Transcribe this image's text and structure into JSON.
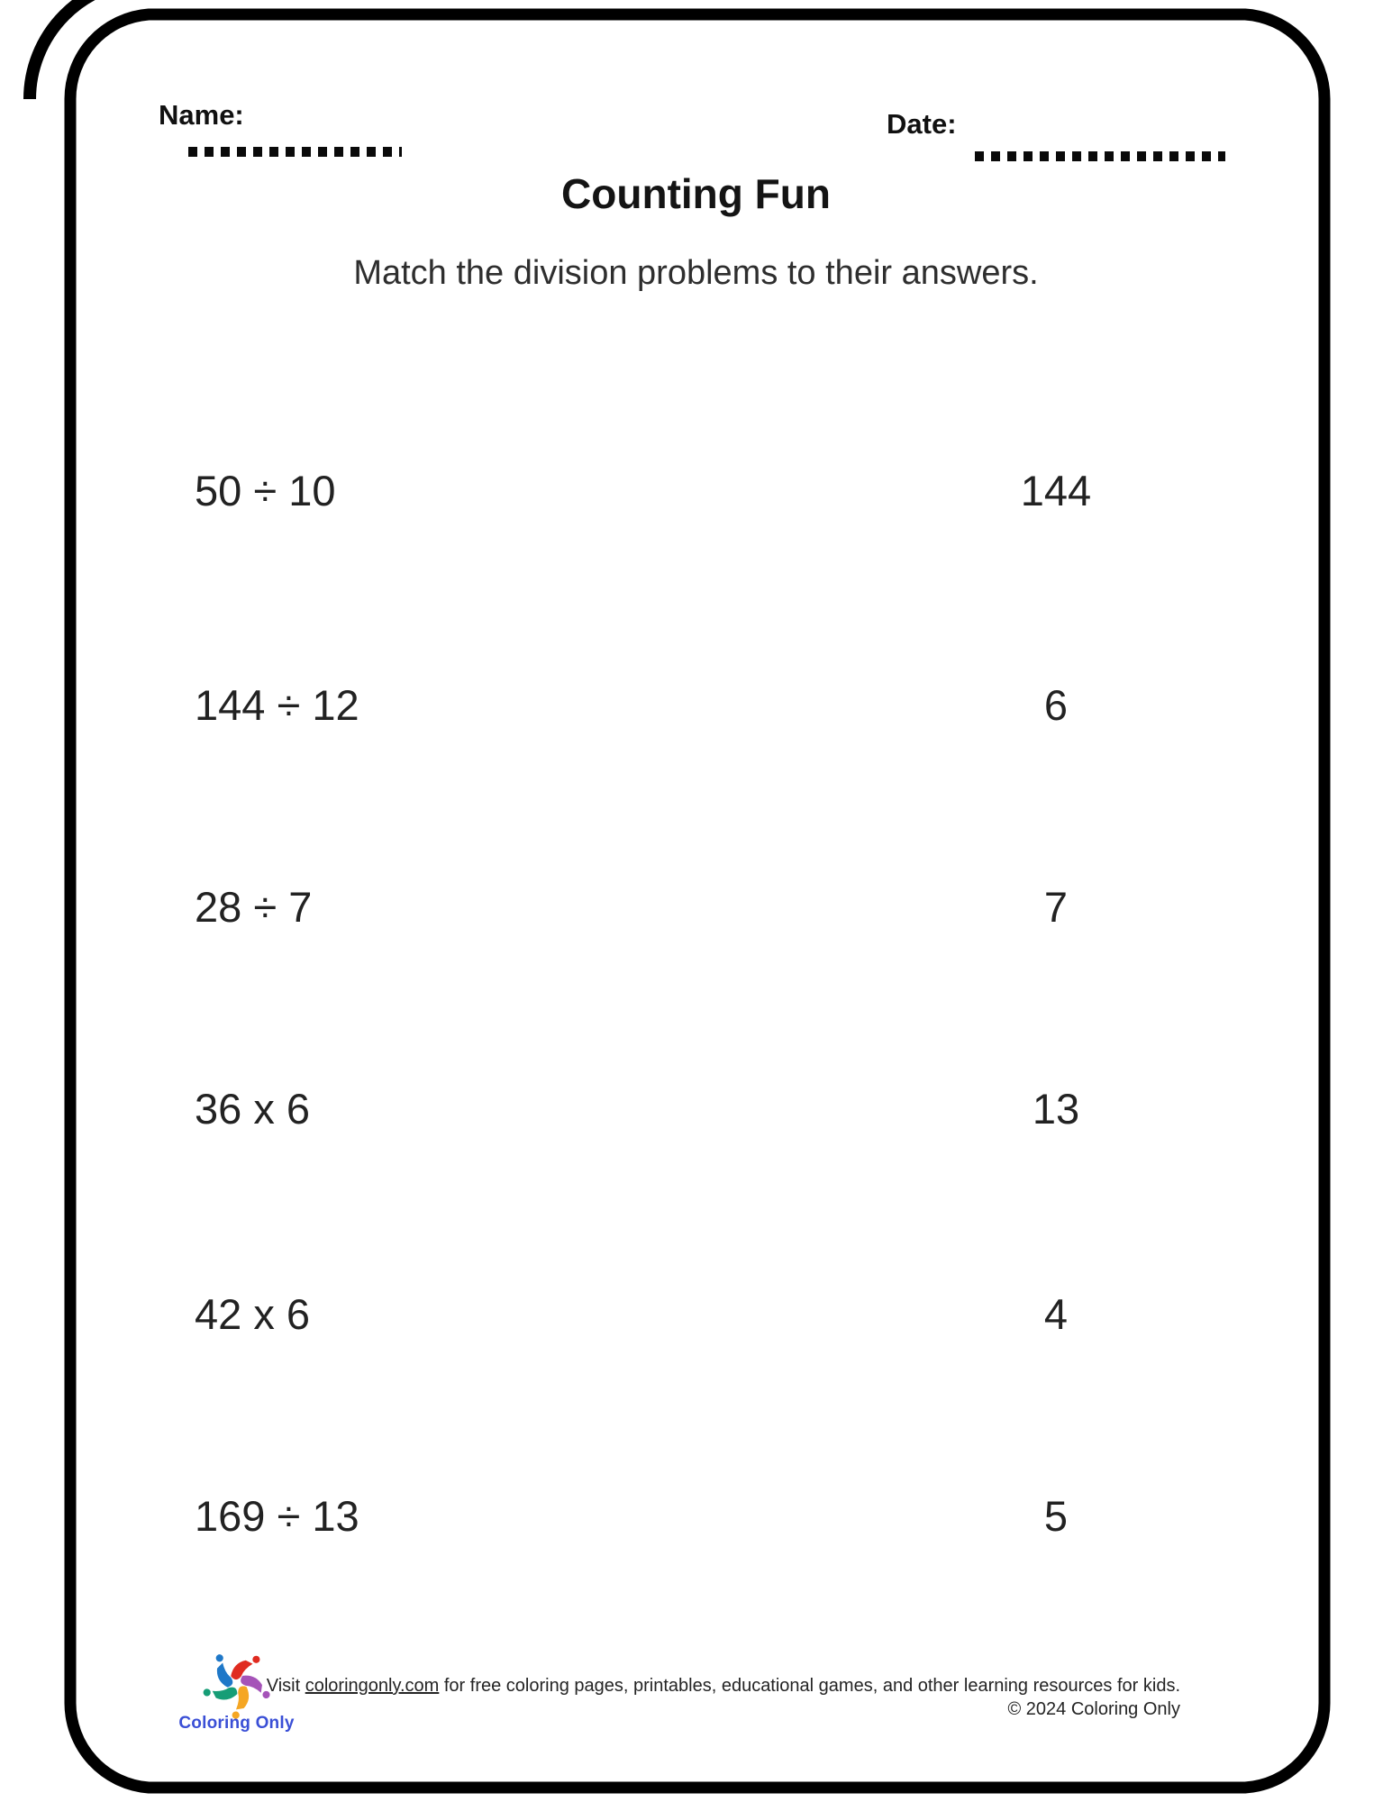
{
  "header": {
    "name_label": "Name:",
    "date_label": "Date:"
  },
  "title": "Counting Fun",
  "subtitle": "Match the division problems to their answers.",
  "problems": [
    {
      "expression": "50 ÷ 10",
      "answer": "144"
    },
    {
      "expression": "144 ÷ 12",
      "answer": "6"
    },
    {
      "expression": "28 ÷ 7",
      "answer": "7"
    },
    {
      "expression": "36 x 6",
      "answer": "13"
    },
    {
      "expression": "42 x 6",
      "answer": "4"
    },
    {
      "expression": "169 ÷ 13",
      "answer": "5"
    }
  ],
  "footer": {
    "visit_prefix": "Visit ",
    "link_text": "coloringonly.com",
    "visit_suffix": " for free coloring pages, printables, educational games, and other learning resources for kids.",
    "copyright": "© 2024 Coloring Only",
    "brand_name": "Coloring Only"
  },
  "colors": {
    "frame": "#000000",
    "brand_blue": "#3a4fd6",
    "star_red": "#e02b20",
    "star_purple": "#a553b8",
    "star_orange": "#f5a623",
    "star_teal": "#169d76",
    "star_blue": "#1f78c8"
  }
}
